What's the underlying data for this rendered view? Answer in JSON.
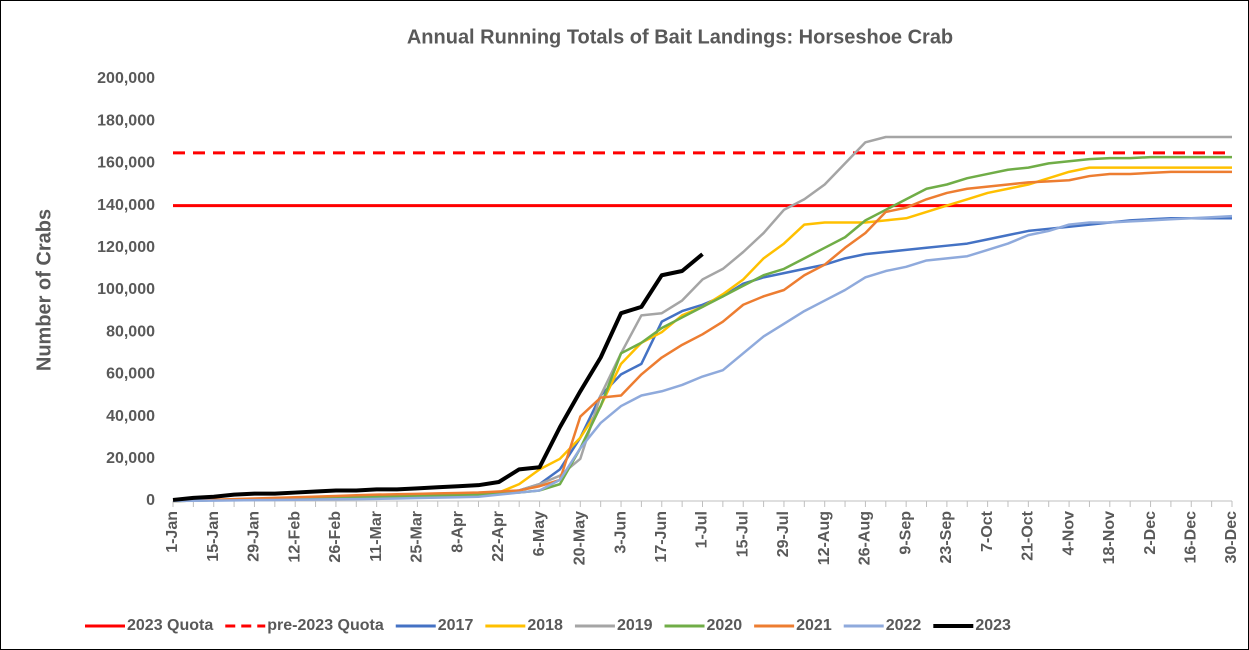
{
  "chart_data": {
    "type": "line",
    "title": "Annual Running Totals of Bait Landings: Horseshoe Crab",
    "y_label": "Number of Crabs",
    "categories": [
      "1-Jan",
      null,
      "15-Jan",
      null,
      "29-Jan",
      null,
      "12-Feb",
      null,
      "26-Feb",
      null,
      "11-Mar",
      null,
      "25-Mar",
      null,
      "8-Apr",
      null,
      "22-Apr",
      null,
      "6-May",
      null,
      "20-May",
      null,
      "3-Jun",
      null,
      "17-Jun",
      null,
      "1-Jul",
      null,
      "15-Jul",
      null,
      "29-Jul",
      null,
      "12-Aug",
      null,
      "26-Aug",
      null,
      "9-Sep",
      null,
      "23-Sep",
      null,
      "7-Oct",
      null,
      "21-Oct",
      null,
      "4-Nov",
      null,
      "18-Nov",
      null,
      "2-Dec",
      null,
      "16-Dec",
      null,
      "30-Dec"
    ],
    "ylim": [
      0,
      200000
    ],
    "yticks": [
      0,
      {
        "value": 20000,
        "label": "20,000"
      },
      {
        "value": 40000,
        "label": "40,000"
      },
      {
        "value": 60000,
        "label": "60,000"
      },
      {
        "value": 80000,
        "label": "80,000"
      },
      {
        "value": 100000,
        "label": "100,000"
      },
      {
        "value": 120000,
        "label": "120,000"
      },
      {
        "value": 140000,
        "label": "140,000"
      },
      {
        "value": 160000,
        "label": "160,000"
      },
      {
        "value": 180000,
        "label": "180,000"
      },
      {
        "value": 200000,
        "label": "200,000"
      }
    ],
    "grid": false,
    "legend": "bottom",
    "reference_lines": [
      {
        "name": "2023 Quota",
        "color": "#ff0000",
        "dashed": false,
        "value": 140000
      },
      {
        "name": "pre-2023 Quota",
        "color": "#ff0000",
        "dashed": true,
        "value": 165000
      }
    ],
    "series": [
      {
        "name": "2017",
        "color": "#4472c4",
        "values": [
          0,
          200,
          400,
          600,
          800,
          1000,
          1200,
          1400,
          1600,
          1800,
          2000,
          2200,
          2400,
          2600,
          2800,
          3000,
          4000,
          5000,
          8000,
          15000,
          30000,
          50000,
          60000,
          65000,
          85000,
          90000,
          93000,
          97000,
          103000,
          106000,
          108000,
          110000,
          112000,
          115000,
          117000,
          118000,
          119000,
          120000,
          121000,
          122000,
          124000,
          126000,
          128000,
          129000,
          130000,
          131000,
          132000,
          133000,
          133500,
          134000,
          134000,
          134000,
          134000
        ]
      },
      {
        "name": "2018",
        "color": "#ffc000",
        "values": [
          0,
          200,
          400,
          600,
          800,
          1000,
          1200,
          1400,
          1600,
          1800,
          2000,
          2200,
          2400,
          2600,
          2800,
          3000,
          4000,
          8000,
          15000,
          20000,
          30000,
          45000,
          65000,
          75000,
          80000,
          88000,
          92000,
          98000,
          105000,
          115000,
          122000,
          131000,
          132000,
          132000,
          132000,
          133000,
          134000,
          137000,
          140000,
          143000,
          146000,
          148000,
          150000,
          153000,
          156000,
          158000,
          158000,
          158000,
          158000,
          158000,
          158000,
          158000,
          158000
        ]
      },
      {
        "name": "2019",
        "color": "#a5a5a5",
        "values": [
          0,
          200,
          400,
          600,
          800,
          1000,
          1200,
          1400,
          1600,
          1800,
          2000,
          2200,
          2400,
          2600,
          2800,
          3000,
          4000,
          5000,
          8000,
          12000,
          20000,
          50000,
          70000,
          88000,
          89000,
          95000,
          105000,
          110000,
          118000,
          127000,
          138000,
          143000,
          150000,
          160000,
          170000,
          172500,
          172500,
          172500,
          172500,
          172500,
          172500,
          172500,
          172500,
          172500,
          172500,
          172500,
          172500,
          172500,
          172500,
          172500,
          172500,
          172500,
          172500
        ]
      },
      {
        "name": "2020",
        "color": "#70ad47",
        "values": [
          0,
          200,
          400,
          600,
          800,
          1000,
          1200,
          1400,
          1600,
          1800,
          2000,
          2200,
          2400,
          2600,
          2800,
          3000,
          3500,
          4000,
          5000,
          8000,
          25000,
          45000,
          70000,
          75000,
          82000,
          87000,
          92000,
          97000,
          102000,
          107000,
          110000,
          115000,
          120000,
          125000,
          133000,
          138000,
          143000,
          148000,
          150000,
          153000,
          155000,
          157000,
          158000,
          160000,
          161000,
          162000,
          162500,
          162500,
          163000,
          163000,
          163000,
          163000,
          163000
        ]
      },
      {
        "name": "2021",
        "color": "#ed7d31",
        "values": [
          0,
          300,
          600,
          900,
          1200,
          1500,
          1800,
          2100,
          2400,
          2700,
          3000,
          3200,
          3400,
          3600,
          3800,
          4000,
          4500,
          5000,
          7000,
          10000,
          40000,
          49000,
          50000,
          60000,
          68000,
          74000,
          79000,
          85000,
          93000,
          97000,
          100000,
          107000,
          112000,
          120000,
          127000,
          137000,
          139000,
          143000,
          146000,
          148000,
          149000,
          150000,
          151000,
          151500,
          152000,
          154000,
          155000,
          155000,
          155500,
          156000,
          156000,
          156000,
          156000
        ]
      },
      {
        "name": "2022",
        "color": "#8faadc",
        "values": [
          0,
          100,
          200,
          300,
          400,
          500,
          600,
          700,
          800,
          900,
          1000,
          1200,
          1400,
          1600,
          1800,
          2000,
          3000,
          4000,
          5000,
          10000,
          25000,
          37000,
          45000,
          50000,
          52000,
          55000,
          59000,
          62000,
          70000,
          78000,
          84000,
          90000,
          95000,
          100000,
          106000,
          109000,
          111000,
          114000,
          115000,
          116000,
          119000,
          122000,
          126000,
          128000,
          131000,
          132000,
          132000,
          132500,
          133000,
          133500,
          134000,
          134500,
          135000
        ]
      },
      {
        "name": "2023",
        "color": "#000000",
        "values": [
          500,
          1500,
          2000,
          3000,
          3500,
          3500,
          4000,
          4500,
          5000,
          5000,
          5500,
          5500,
          6000,
          6500,
          7000,
          7500,
          9000,
          15000,
          16000,
          35000,
          52000,
          68000,
          89000,
          92000,
          107000,
          109000,
          117000,
          null,
          null,
          null,
          null,
          null,
          null,
          null,
          null,
          null,
          null,
          null,
          null,
          null,
          null,
          null,
          null,
          null,
          null,
          null,
          null,
          null,
          null,
          null,
          null,
          null,
          null
        ]
      }
    ]
  }
}
